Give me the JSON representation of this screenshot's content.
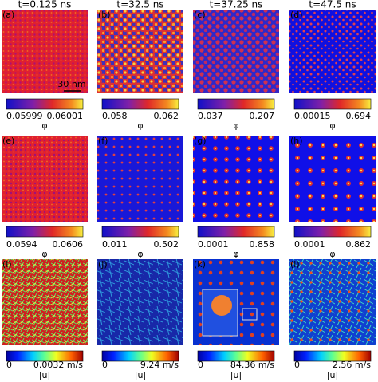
{
  "columns": [
    "t=0.125 ns",
    "t=32.5 ns",
    "t=37.25 ns",
    "t=47.5 ns"
  ],
  "scale_bar": "30 nm",
  "rows": [
    {
      "symbol": "φ",
      "panels": [
        {
          "label": "(a)",
          "min": "0.05999",
          "max": "0.06001"
        },
        {
          "label": "(b)",
          "min": "0.058",
          "max": "0.062"
        },
        {
          "label": "(c)",
          "min": "0.037",
          "max": "0.207"
        },
        {
          "label": "(d)",
          "min": "0.00015",
          "max": "0.694"
        }
      ]
    },
    {
      "symbol": "φ",
      "panels": [
        {
          "label": "(e)",
          "min": "0.0594",
          "max": "0.0606"
        },
        {
          "label": "(f)",
          "min": "0.011",
          "max": "0.502"
        },
        {
          "label": "(g)",
          "min": "0.0001",
          "max": "0.858"
        },
        {
          "label": "(h)",
          "min": "0.0001",
          "max": "0.862"
        }
      ]
    },
    {
      "symbol": "|u|",
      "panels": [
        {
          "label": "(i)",
          "min": "0",
          "max": "0.0032 m/s"
        },
        {
          "label": "(j)",
          "min": "0",
          "max": "9.24 m/s"
        },
        {
          "label": "(k)",
          "min": "0",
          "max": "84.36 m/s"
        },
        {
          "label": "(l)",
          "min": "0",
          "max": "2.56 m/s"
        }
      ]
    }
  ]
}
